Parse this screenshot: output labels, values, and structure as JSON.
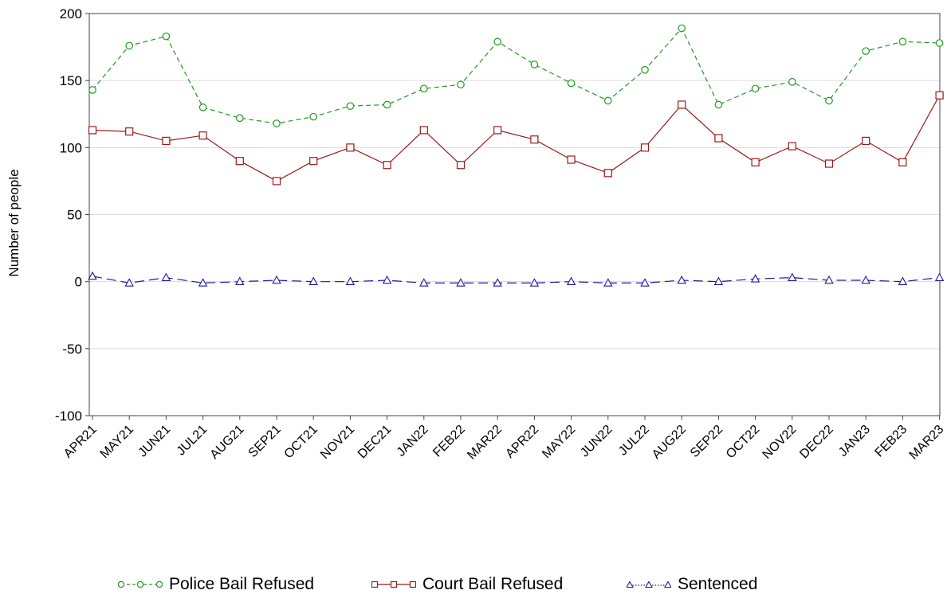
{
  "chart_data": {
    "type": "line",
    "title": "",
    "xlabel": "",
    "ylabel": "Number of people",
    "ylim": [
      -100,
      200
    ],
    "yticks": [
      -100,
      -50,
      0,
      50,
      100,
      150,
      200
    ],
    "grid": true,
    "legend_position": "bottom",
    "categories": [
      "APR21",
      "MAY21",
      "JUN21",
      "JUL21",
      "AUG21",
      "SEP21",
      "OCT21",
      "NOV21",
      "DEC21",
      "JAN22",
      "FEB22",
      "MAR22",
      "APR22",
      "MAY22",
      "JUN22",
      "JUL22",
      "AUG22",
      "SEP22",
      "OCT22",
      "NOV22",
      "DEC22",
      "JAN23",
      "FEB23",
      "MAR23"
    ],
    "series": [
      {
        "name": "Police Bail Refused",
        "color": "#1f9a1f",
        "marker": "circle",
        "line_style": "dashed",
        "values": [
          143,
          176,
          183,
          130,
          122,
          118,
          123,
          131,
          132,
          144,
          147,
          179,
          162,
          148,
          135,
          158,
          189,
          132,
          144,
          149,
          135,
          172,
          179,
          178
        ]
      },
      {
        "name": "Court Bail Refused",
        "color": "#9b1a1a",
        "marker": "square",
        "line_style": "solid",
        "values": [
          113,
          112,
          105,
          109,
          90,
          75,
          90,
          100,
          87,
          113,
          87,
          113,
          106,
          91,
          81,
          100,
          132,
          107,
          89,
          101,
          88,
          105,
          89,
          139
        ]
      },
      {
        "name": "Sentenced",
        "color": "#1a1a9b",
        "marker": "triangle",
        "line_style": "long-dash",
        "values": [
          4,
          -1,
          3,
          -1,
          0,
          1,
          0,
          0,
          1,
          -1,
          -1,
          -1,
          -1,
          0,
          -1,
          -1,
          1,
          0,
          2,
          3,
          1,
          1,
          0,
          3
        ]
      }
    ]
  }
}
